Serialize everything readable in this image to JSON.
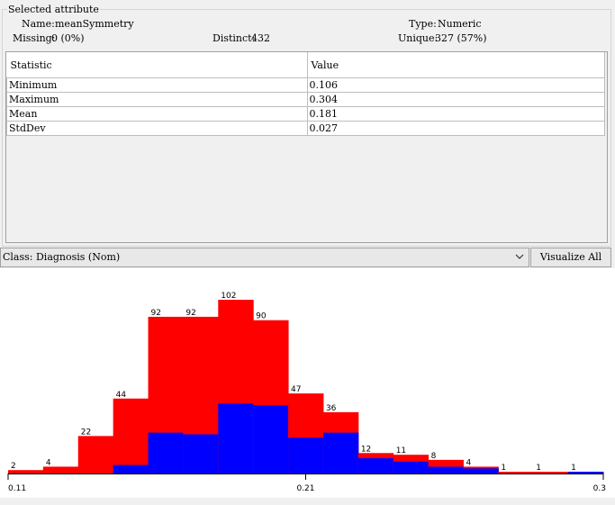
{
  "panel": {
    "title": "Selected attribute",
    "name_label": "Name:",
    "name_value": "meanSymmetry",
    "type_label": "Type:",
    "type_value": "Numeric",
    "missing_label": "Missing:",
    "missing_value": "0 (0%)",
    "distinct_label": "Distinct:",
    "distinct_value": "432",
    "unique_label": "Unique:",
    "unique_value": "327 (57%)"
  },
  "stats": {
    "headers": [
      "Statistic",
      "Value"
    ],
    "rows": [
      {
        "stat": "Minimum",
        "value": "0.106"
      },
      {
        "stat": "Maximum",
        "value": "0.304"
      },
      {
        "stat": "Mean",
        "value": "0.181"
      },
      {
        "stat": "StdDev",
        "value": "0.027"
      }
    ]
  },
  "class_select": {
    "value": "Class: Diagnosis (Nom)",
    "icon": "chevron-down-icon"
  },
  "visualize_button": "Visualize All",
  "chart_data": {
    "type": "bar",
    "stacked": true,
    "colors": {
      "red": "#ff0000",
      "blue": "#0000ff"
    },
    "bins": [
      {
        "total": 2,
        "blue": 0
      },
      {
        "total": 4,
        "blue": 0
      },
      {
        "total": 22,
        "blue": 0
      },
      {
        "total": 44,
        "blue": 5
      },
      {
        "total": 92,
        "blue": 24
      },
      {
        "total": 92,
        "blue": 23
      },
      {
        "total": 102,
        "blue": 41
      },
      {
        "total": 90,
        "blue": 40
      },
      {
        "total": 47,
        "blue": 21
      },
      {
        "total": 36,
        "blue": 24
      },
      {
        "total": 12,
        "blue": 9
      },
      {
        "total": 11,
        "blue": 7
      },
      {
        "total": 8,
        "blue": 4
      },
      {
        "total": 4,
        "blue": 3
      },
      {
        "total": 1,
        "blue": 0
      },
      {
        "total": 1,
        "blue": 0
      },
      {
        "total": 1,
        "blue": 1
      }
    ],
    "x_ticks": [
      "0.11",
      "0.21",
      "0.3"
    ],
    "ymax": 102
  }
}
